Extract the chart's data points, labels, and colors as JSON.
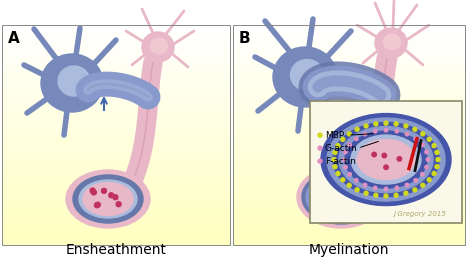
{
  "background_color": "#ffffff",
  "panel_A_label": "A",
  "panel_B_label": "B",
  "caption_A": "Ensheathment",
  "caption_B": "Myelination",
  "watermark": "J Gregory 2015",
  "gradient_top": "#ffffc0",
  "gradient_bottom": "#ffffff",
  "myelin_blue": "#8899cc",
  "myelin_blue_dark": "#6677aa",
  "myelin_blue_light": "#aabbdd",
  "axon_pink": "#e8b8c8",
  "axon_pink_dark": "#d090a8",
  "cell_body_blue": "#7788bb",
  "cell_body_blue_light": "#99aacc",
  "neuron_pink": "#e8b8c8",
  "dot_color": "#c03060",
  "inset_bg": "#faf8e8",
  "inset_border": "#888866",
  "arrow_color": "#4466aa",
  "separator_color": "#888888",
  "caption_fontsize": 10,
  "panel_label_fontsize": 11
}
